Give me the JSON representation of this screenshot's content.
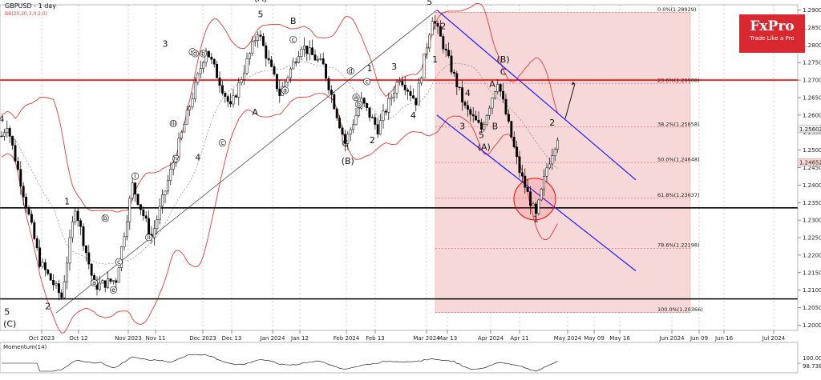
{
  "header": {
    "symbol_label": "GBPUSD - 1 day",
    "indicator_label": "BB(20,20,3,0,2,0)"
  },
  "logo": {
    "name": "FxPro",
    "tagline": "Trade Like a Pro"
  },
  "colors": {
    "bull": "#ffffff",
    "bear": "#000000",
    "bands": "#e03a3a",
    "channel": "#1a1aff",
    "level": "#ff0000",
    "zone": "#f6d8d8"
  },
  "chart_data": {
    "type": "candlestick",
    "y_ticks": [
      "1.29000",
      "1.28500",
      "1.28000",
      "1.27500",
      "1.27000",
      "1.26500",
      "1.26000",
      "1.25500",
      "1.25000",
      "1.24500",
      "1.24000",
      "1.23500",
      "1.23000",
      "1.22500",
      "1.22000",
      "1.21500",
      "1.21000",
      "1.20500",
      "1.20000"
    ],
    "x_ticks": [
      "Oct 2023",
      "Oct 12",
      "Nov 2023",
      "Nov 11",
      "Dec 2023",
      "Dec 13",
      "Jan 2024",
      "Jan 12",
      "Feb 2024",
      "Feb 13",
      "Mar 2024",
      "Mar 13",
      "Apr 2024",
      "Apr 11",
      "May 2024",
      "May 09",
      "May 16",
      "Jun 2024",
      "Jun 09",
      "Jun 16",
      "Jul 2024"
    ],
    "price_tags": [
      {
        "text": "1.25602",
        "value": 1.25602
      },
      {
        "text": "1.24652",
        "value": 1.24652
      }
    ],
    "fib_levels": [
      {
        "label": "0.0%(1.28929)",
        "value": 1.28929
      },
      {
        "label": "23.6%(1.26908)",
        "value": 1.26908
      },
      {
        "label": "38.2%(1.25658)",
        "value": 1.25658
      },
      {
        "label": "50.0%(1.24648)",
        "value": 1.24648
      },
      {
        "label": "61.8%(1.23637)",
        "value": 1.23637
      },
      {
        "label": "78.6%(1.22198)",
        "value": 1.22198
      },
      {
        "label": "100.0%(1.20366)",
        "value": 1.20366
      }
    ],
    "horizontal_levels": [
      1.27,
      1.2335,
      1.2075
    ],
    "waves": [
      {
        "text": "4",
        "x": 0,
        "y": 1.258
      },
      {
        "text": "1",
        "x": 24,
        "y": 1.2345
      },
      {
        "text": "5",
        "x": 2,
        "y": 1.203
      },
      {
        "text": "(C)",
        "x": 3,
        "y": 1.1995
      },
      {
        "text": "2",
        "x": 17,
        "y": 1.2045
      },
      {
        "text": "3",
        "x": 60,
        "y": 1.2795
      },
      {
        "text": "4",
        "x": 72,
        "y": 1.247
      },
      {
        "text": "(A)",
        "x": 95,
        "y": 1.2925
      },
      {
        "text": "5",
        "x": 95,
        "y": 1.288
      },
      {
        "text": "A",
        "x": 93,
        "y": 1.26
      },
      {
        "text": "B",
        "x": 107,
        "y": 1.286
      },
      {
        "text": "1",
        "x": 135,
        "y": 1.2725
      },
      {
        "text": "3",
        "x": 144,
        "y": 1.273
      },
      {
        "text": "C",
        "x": 126,
        "y": 1.251
      },
      {
        "text": "(B)",
        "x": 127,
        "y": 1.246
      },
      {
        "text": "2",
        "x": 136,
        "y": 1.252
      },
      {
        "text": "4",
        "x": 151,
        "y": 1.259
      },
      {
        "text": "(C)",
        "x": 157,
        "y": 1.295
      },
      {
        "text": "5",
        "x": 157,
        "y": 1.2915
      },
      {
        "text": "2",
        "x": 162,
        "y": 1.2845
      },
      {
        "text": "1",
        "x": 159,
        "y": 1.275
      },
      {
        "text": "3",
        "x": 169,
        "y": 1.256
      },
      {
        "text": "4",
        "x": 171,
        "y": 1.2655
      },
      {
        "text": "5",
        "x": 176,
        "y": 1.2535
      },
      {
        "text": "A",
        "x": 180,
        "y": 1.268
      },
      {
        "text": "B",
        "x": 181,
        "y": 1.256
      },
      {
        "text": "(B)",
        "x": 184,
        "y": 1.275
      },
      {
        "text": "C",
        "x": 184,
        "y": 1.2715
      },
      {
        "text": "(A)",
        "x": 177,
        "y": 1.25
      },
      {
        "text": "2",
        "x": 202,
        "y": 1.257
      },
      {
        "text": "1",
        "x": 196,
        "y": 1.2295
      }
    ],
    "roman_waves": [
      {
        "text": "i",
        "x": 49,
        "y": 1.242
      },
      {
        "text": "ii",
        "x": 54,
        "y": 1.2245
      },
      {
        "text": "iii",
        "x": 63,
        "y": 1.257
      },
      {
        "text": "iv",
        "x": 64,
        "y": 1.247
      },
      {
        "text": "v",
        "x": 70,
        "y": 1.2775
      },
      {
        "text": "a",
        "x": 34,
        "y": 1.2115
      },
      {
        "text": "b",
        "x": 38,
        "y": 1.23
      },
      {
        "text": "c",
        "x": 43,
        "y": 1.2175
      },
      {
        "text": "e",
        "x": 41,
        "y": 1.2095
      },
      {
        "text": "b",
        "x": 74,
        "y": 1.277
      },
      {
        "text": "d",
        "x": 71,
        "y": 1.277
      },
      {
        "text": "c",
        "x": 81,
        "y": 1.2515
      },
      {
        "text": "a",
        "x": 130,
        "y": 1.2645
      },
      {
        "text": "b",
        "x": 131,
        "y": 1.2625
      },
      {
        "text": "c",
        "x": 134,
        "y": 1.269
      },
      {
        "text": "d",
        "x": 128,
        "y": 1.272
      },
      {
        "text": "c",
        "x": 107,
        "y": 1.281
      },
      {
        "text": "a",
        "x": 104,
        "y": 1.2665
      }
    ],
    "momentum": {
      "title": "Momentum(14)",
      "ticks": [
        "100.000",
        "98.738"
      ]
    }
  }
}
